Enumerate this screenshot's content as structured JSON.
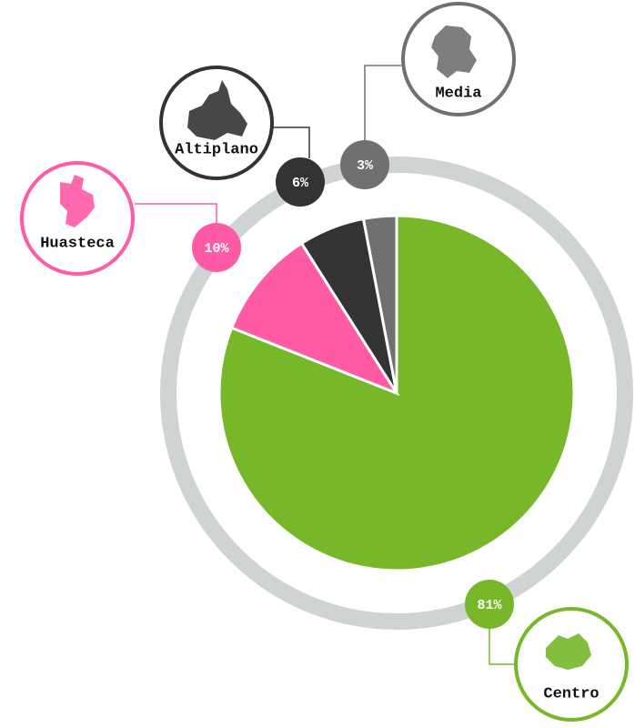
{
  "chart_data": {
    "type": "pie",
    "categories": [
      "Centro",
      "Huasteca",
      "Altiplano",
      "Media"
    ],
    "values": [
      81,
      10,
      6,
      3
    ],
    "value_labels": [
      "81%",
      "10%",
      "6%",
      "3%"
    ],
    "colors": [
      "#76b82a",
      "#ff5aa5",
      "#333333",
      "#707070"
    ]
  }
}
